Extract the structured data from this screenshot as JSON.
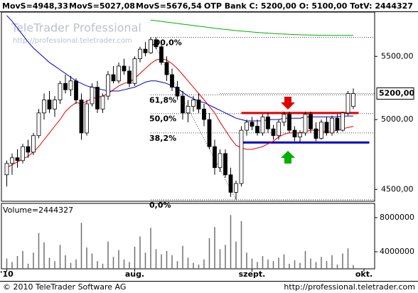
{
  "chart_data": {
    "type": "candlestick",
    "log_scale": true,
    "header": "OTP Bank C: 5200,00 O: 5100,00 TotV: 2444327",
    "watermark": "TeleTrader Professional",
    "watermark_url": "http://professional.teletrader.com",
    "footer_left": "© 2010 TeleTrader Software AG",
    "footer_right": "http://professional.teletrader.com",
    "xlim": [
      -1,
      69
    ],
    "xticks": [
      {
        "value": 0,
        "label": "'10"
      },
      {
        "value": 24,
        "label": "aug."
      },
      {
        "value": 46,
        "label": "szept."
      },
      {
        "value": 67,
        "label": "okt."
      }
    ],
    "ylim": [
      4420,
      5880
    ],
    "yticks": [
      {
        "value": 4500,
        "label": "4500,00"
      },
      {
        "value": 5000,
        "label": "5000,00"
      },
      {
        "value": 5500,
        "label": "5500,00"
      }
    ],
    "last_price": {
      "value": 5200,
      "label": "5200,00"
    },
    "up_color": "#ffffff",
    "down_color": "#000000",
    "open": [
      4600,
      4680,
      4720,
      4700,
      4800,
      4760,
      4880,
      5050,
      5150,
      5080,
      5150,
      5280,
      5230,
      5300,
      5150,
      4900,
      5120,
      5250,
      5080,
      5180,
      5350,
      5300,
      5420,
      5380,
      5280,
      5480,
      5560,
      5530,
      5640,
      5580,
      5450,
      5350,
      5250,
      5180,
      5050,
      5100,
      5150,
      5080,
      5000,
      4800,
      4650,
      4750,
      4600,
      4480,
      4540,
      4920,
      4980,
      4950,
      4900,
      5020,
      4930,
      4880,
      4980,
      5040,
      4920,
      4870,
      4900,
      5040,
      4930,
      4860,
      4980,
      4900,
      5010,
      4920,
      5050,
      5100
    ],
    "high": [
      4700,
      4750,
      4780,
      4820,
      4850,
      4900,
      5080,
      5200,
      5220,
      5180,
      5300,
      5350,
      5340,
      5320,
      5200,
      5150,
      5280,
      5300,
      5200,
      5380,
      5420,
      5450,
      5480,
      5420,
      5500,
      5580,
      5620,
      5660,
      5660,
      5600,
      5500,
      5400,
      5300,
      5220,
      5150,
      5180,
      5200,
      5120,
      5050,
      4850,
      4780,
      4780,
      4650,
      4560,
      4950,
      5000,
      5020,
      5000,
      5040,
      5050,
      4960,
      5000,
      5060,
      5060,
      4950,
      4920,
      5060,
      5060,
      4980,
      5000,
      5020,
      5030,
      5040,
      5060,
      5220,
      5240
    ],
    "low": [
      4520,
      4600,
      4650,
      4680,
      4720,
      4740,
      4860,
      5000,
      5050,
      5020,
      5120,
      5200,
      5180,
      5120,
      4850,
      4880,
      5100,
      5050,
      5050,
      5150,
      5280,
      5280,
      5350,
      5250,
      5260,
      5450,
      5500,
      5520,
      5560,
      5430,
      5300,
      5220,
      5150,
      5000,
      4980,
      5060,
      5050,
      4950,
      4780,
      4600,
      4620,
      4580,
      4450,
      4430,
      4520,
      4880,
      4920,
      4880,
      4880,
      4900,
      4850,
      4850,
      4950,
      4900,
      4840,
      4830,
      4880,
      4900,
      4840,
      4850,
      4880,
      4880,
      4900,
      4910,
      5030,
      5080
    ],
    "close": [
      4680,
      4720,
      4700,
      4800,
      4760,
      4880,
      5050,
      5150,
      5080,
      5150,
      5280,
      5230,
      5300,
      5150,
      4900,
      5120,
      5250,
      5080,
      5180,
      5350,
      5300,
      5420,
      5380,
      5280,
      5480,
      5560,
      5530,
      5640,
      5580,
      5450,
      5350,
      5250,
      5180,
      5050,
      5100,
      5150,
      5080,
      5000,
      4800,
      4650,
      4750,
      4600,
      4480,
      4540,
      4920,
      4980,
      4950,
      4900,
      5020,
      4930,
      4880,
      4980,
      5040,
      4920,
      4870,
      4900,
      5040,
      4930,
      4860,
      4980,
      4900,
      5010,
      4920,
      5050,
      5200,
      5200
    ],
    "series": [
      {
        "name": "MovS=4948,33",
        "color": "#e00000",
        "values": [
          4650,
          4670,
          4690,
          4710,
          4730,
          4760,
          4800,
          4850,
          4900,
          4950,
          5000,
          5060,
          5100,
          5130,
          5120,
          5140,
          5160,
          5170,
          5180,
          5200,
          5230,
          5260,
          5280,
          5290,
          5320,
          5360,
          5400,
          5440,
          5470,
          5480,
          5470,
          5440,
          5400,
          5350,
          5300,
          5250,
          5200,
          5150,
          5100,
          5050,
          4980,
          4920,
          4860,
          4810,
          4790,
          4780,
          4780,
          4790,
          4800,
          4820,
          4840,
          4870,
          4890,
          4900,
          4900,
          4900,
          4910,
          4920,
          4920,
          4920,
          4900,
          4910,
          4920,
          4930,
          4940,
          4948.33
        ]
      },
      {
        "name": "MovS=5027,08",
        "color": "#0000c0",
        "values": [
          5850,
          5800,
          5740,
          5680,
          5620,
          5570,
          5530,
          5490,
          5450,
          5420,
          5390,
          5360,
          5330,
          5300,
          5280,
          5260,
          5250,
          5240,
          5230,
          5220,
          5220,
          5220,
          5230,
          5240,
          5250,
          5270,
          5290,
          5300,
          5300,
          5290,
          5280,
          5260,
          5240,
          5210,
          5180,
          5160,
          5140,
          5130,
          5110,
          5090,
          5070,
          5050,
          5030,
          5010,
          5000,
          4990,
          4990,
          4990,
          4990,
          5000,
          5000,
          5000,
          5010,
          5010,
          5010,
          5010,
          5020,
          5020,
          5020,
          5020,
          5020,
          5020,
          5020,
          5025,
          5027,
          5027.08
        ]
      },
      {
        "name": "MovS=5676,54",
        "color": "#00b000",
        "values": [
          null,
          null,
          null,
          null,
          null,
          null,
          null,
          null,
          null,
          null,
          null,
          null,
          null,
          null,
          null,
          null,
          null,
          null,
          null,
          null,
          null,
          null,
          null,
          null,
          null,
          null,
          null,
          5810,
          5804,
          5798,
          5792,
          5786,
          5780,
          5774,
          5768,
          5762,
          5756,
          5750,
          5744,
          5738,
          5733,
          5728,
          5723,
          5718,
          5714,
          5710,
          5706,
          5702,
          5699,
          5696,
          5693,
          5690,
          5688,
          5686,
          5684,
          5682,
          5681,
          5680,
          5679,
          5678,
          5678,
          5677,
          5677,
          5677,
          5677,
          5676.54
        ]
      }
    ],
    "fib_levels": [
      {
        "value": 5660,
        "label": "100,0%"
      },
      {
        "value": 5190,
        "label": "61,8%"
      },
      {
        "value": 5045,
        "label": "50,0%"
      },
      {
        "value": 4900,
        "label": "38,2%"
      },
      {
        "value": 4430,
        "label": "0,0%"
      }
    ],
    "resistance": {
      "value": 5050,
      "color": "#e00000"
    },
    "support": {
      "value": 4830,
      "color": "#0000c0"
    },
    "volume": {
      "label": "Volume=2444327",
      "color": "#707070",
      "ylim": [
        2000000,
        9500000
      ],
      "yticks": [
        4000000,
        8000000
      ],
      "values": [
        3200000,
        2800000,
        3500000,
        4100000,
        2600000,
        3900000,
        6200000,
        5100000,
        3300000,
        2900000,
        4800000,
        3600000,
        2700000,
        3100000,
        7400000,
        4500000,
        3800000,
        2900000,
        2600000,
        5200000,
        3400000,
        4200000,
        3100000,
        2800000,
        4600000,
        5800000,
        3900000,
        6800000,
        4300000,
        3700000,
        4100000,
        3600000,
        2900000,
        4700000,
        3300000,
        2700000,
        2500000,
        3100000,
        5600000,
        6900000,
        4300000,
        4800000,
        8300000,
        5200000,
        7600000,
        3900000,
        3200000,
        2800000,
        3500000,
        3100000,
        2900000,
        3300000,
        3700000,
        2600000,
        3000000,
        2700000,
        4100000,
        3200000,
        2800000,
        3400000,
        2900000,
        3600000,
        2500000,
        3800000,
        4400000,
        2444327
      ]
    }
  }
}
